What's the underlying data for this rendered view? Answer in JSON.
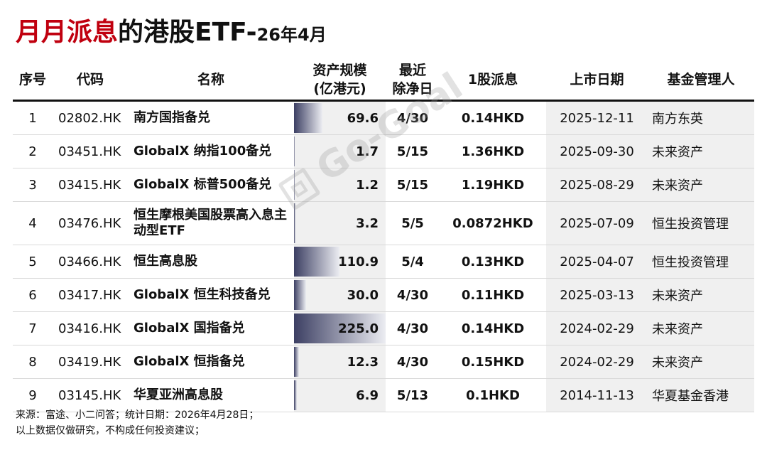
{
  "title": {
    "red": "月月派息",
    "black": "的港股ETF-",
    "suffix": "26年4月"
  },
  "headers": {
    "idx": "序号",
    "code": "代码",
    "name": "名称",
    "assets_l1": "资产规模",
    "assets_l2": "(亿港元)",
    "exdate_l1": "最近",
    "exdate_l2": "除净日",
    "dividend": "1股派息",
    "listing": "上市日期",
    "manager": "基金管理人"
  },
  "rows": [
    {
      "idx": "1",
      "code": "02802.HK",
      "name": "南方国指备兑",
      "assets": "69.6",
      "assets_value": 69.6,
      "exdate": "4/30",
      "dividend": "0.14HKD",
      "listing": "2025-12-11",
      "manager": "南方东英"
    },
    {
      "idx": "2",
      "code": "03451.HK",
      "name": "GlobalX 纳指100备兑",
      "assets": "1.7",
      "assets_value": 1.7,
      "exdate": "5/15",
      "dividend": "1.36HKD",
      "listing": "2025-09-30",
      "manager": "未来资产"
    },
    {
      "idx": "3",
      "code": "03415.HK",
      "name": "GlobalX 标普500备兑",
      "assets": "1.2",
      "assets_value": 1.2,
      "exdate": "5/15",
      "dividend": "1.19HKD",
      "listing": "2025-08-29",
      "manager": "未来资产"
    },
    {
      "idx": "4",
      "code": "03476.HK",
      "name": "恒生摩根美国股票高入息主动型ETF",
      "assets": "3.2",
      "assets_value": 3.2,
      "exdate": "5/5",
      "dividend": "0.0872HKD",
      "listing": "2025-07-09",
      "manager": "恒生投资管理"
    },
    {
      "idx": "5",
      "code": "03466.HK",
      "name": "恒生高息股",
      "assets": "110.9",
      "assets_value": 110.9,
      "exdate": "5/4",
      "dividend": "0.13HKD",
      "listing": "2025-04-07",
      "manager": "恒生投资管理"
    },
    {
      "idx": "6",
      "code": "03417.HK",
      "name": "GlobalX 恒生科技备兑",
      "assets": "30.0",
      "assets_value": 30.0,
      "exdate": "4/30",
      "dividend": "0.11HKD",
      "listing": "2025-03-13",
      "manager": "未来资产"
    },
    {
      "idx": "7",
      "code": "03416.HK",
      "name": "GlobalX 国指备兑",
      "assets": "225.0",
      "assets_value": 225.0,
      "exdate": "4/30",
      "dividend": "0.14HKD",
      "listing": "2024-02-29",
      "manager": "未来资产"
    },
    {
      "idx": "8",
      "code": "03419.HK",
      "name": "GlobalX 恒指备兑",
      "assets": "12.3",
      "assets_value": 12.3,
      "exdate": "4/30",
      "dividend": "0.15HKD",
      "listing": "2024-02-29",
      "manager": "未来资产"
    },
    {
      "idx": "9",
      "code": "03145.HK",
      "name": "华夏亚洲高息股",
      "assets": "6.9",
      "assets_value": 6.9,
      "exdate": "5/13",
      "dividend": "0.1HKD",
      "listing": "2014-11-13",
      "manager": "华夏基金香港"
    }
  ],
  "assets_bar_max": 225.0,
  "watermark": "Go-Goal",
  "notes": {
    "line1": "来源：富途、小二问答；统计日期：2026年4月28日；",
    "line2": "以上数据仅做研究，不构成任何投资建议；"
  },
  "colors": {
    "title_red": "#c0000f",
    "bar_dark": "#3c3f63",
    "shade": "#f0f0f0"
  }
}
